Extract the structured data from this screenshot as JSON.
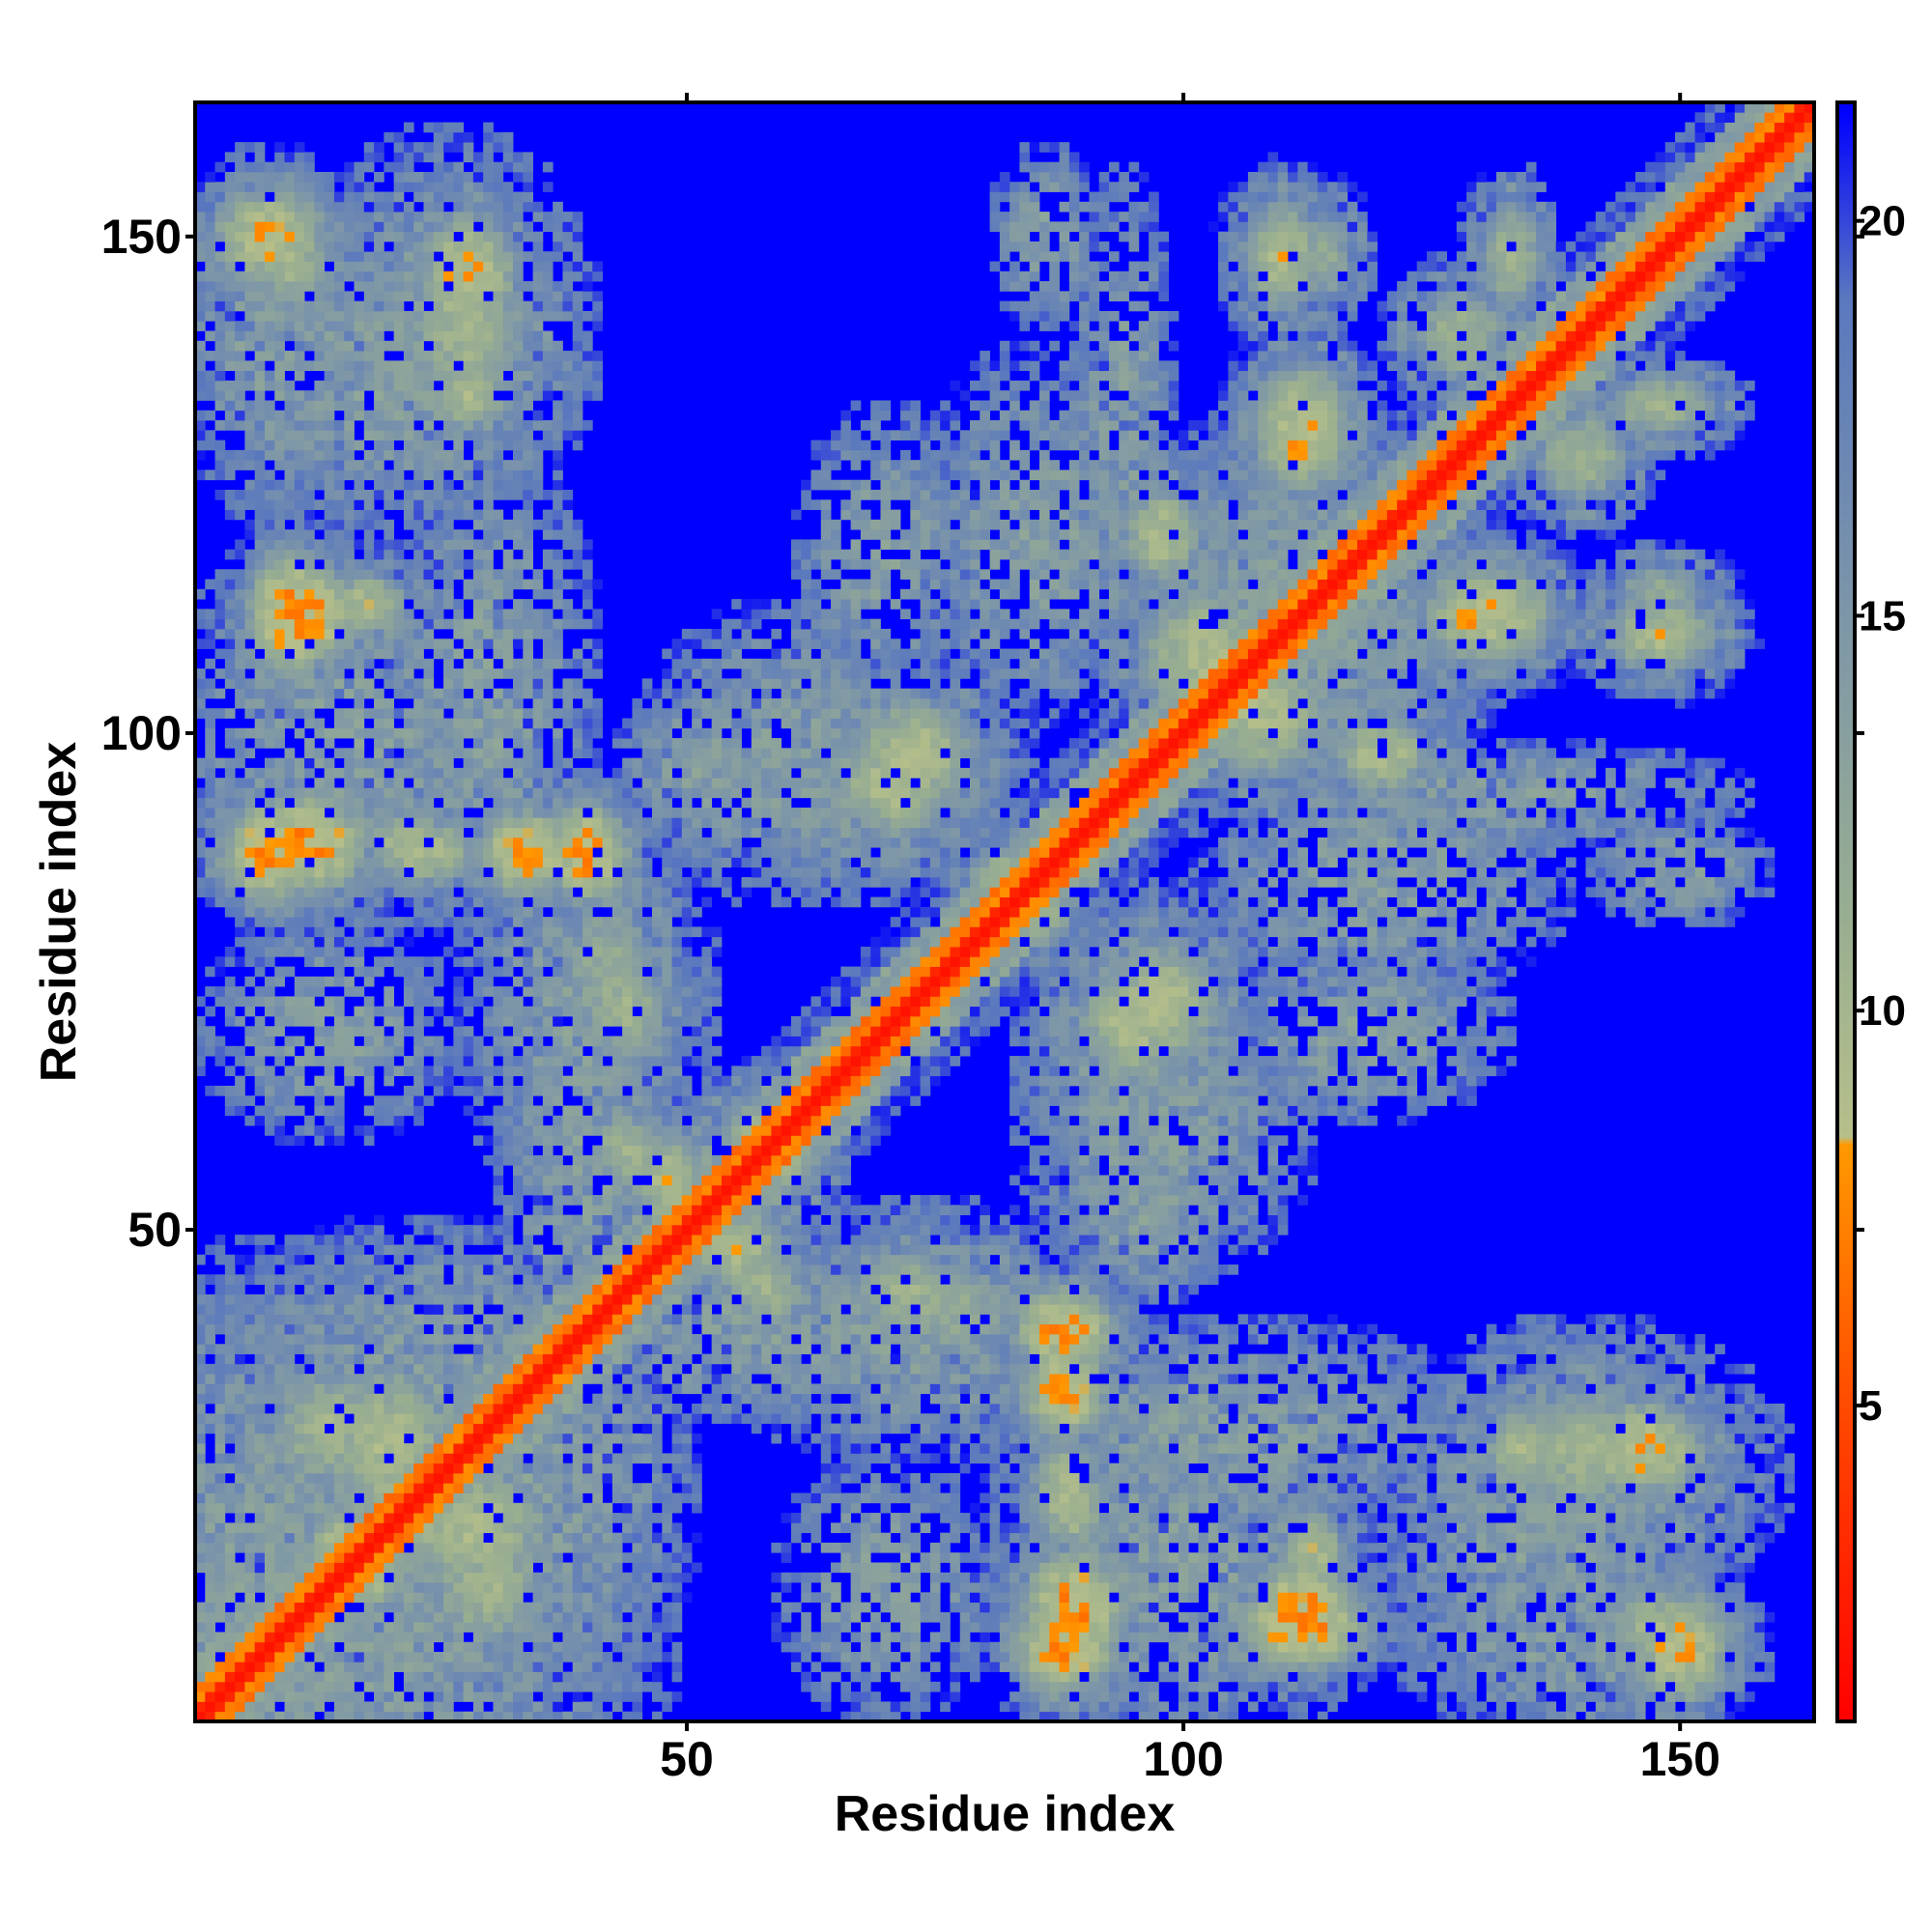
{
  "chart_data": {
    "type": "heatmap",
    "title": "",
    "xlabel": "Residue index",
    "ylabel": "Residue index",
    "x_range": [
      1,
      163
    ],
    "y_range": [
      1,
      163
    ],
    "x_ticks": [
      50,
      100,
      150
    ],
    "y_ticks": [
      50,
      100,
      150
    ],
    "x_tick_labels": [
      "50",
      "100",
      "150"
    ],
    "y_tick_labels": [
      "50",
      "100",
      "150"
    ],
    "colorbar": {
      "range": [
        1,
        21.5
      ],
      "ticks": [
        5,
        10,
        15,
        20
      ],
      "tick_labels": [
        "5",
        "10",
        "15",
        "20"
      ],
      "colors": [
        {
          "at": 1,
          "color": "#ff0000"
        },
        {
          "at": 5,
          "color": "#ff4a00"
        },
        {
          "at": 8.3,
          "color": "#ff9900"
        },
        {
          "at": 8.4,
          "color": "#b6bf8a"
        },
        {
          "at": 11,
          "color": "#9aaf90"
        },
        {
          "at": 15,
          "color": "#7d96a8"
        },
        {
          "at": 19,
          "color": "#5a78be"
        },
        {
          "at": 21.4,
          "color": "#0000ff"
        }
      ]
    },
    "background_color": "#0000ff",
    "value_meaning": "pairwise residue distance (cutoff ~21.5); diagonal band of low values, off-diagonal contact clusters",
    "diagonal_band": {
      "core_value": 2,
      "inner_value": 6,
      "halo_value": 12,
      "outer_value": 18
    },
    "contact_clusters": [
      {
        "x": 8,
        "y": 150,
        "w": 7,
        "h": 6,
        "peak": 7
      },
      {
        "x": 28,
        "y": 146,
        "w": 6,
        "h": 8,
        "peak": 7
      },
      {
        "x": 28,
        "y": 134,
        "w": 5,
        "h": 4,
        "peak": 8
      },
      {
        "x": 12,
        "y": 112,
        "w": 6,
        "h": 6,
        "peak": 6
      },
      {
        "x": 12,
        "y": 89,
        "w": 7,
        "h": 6,
        "peak": 6
      },
      {
        "x": 34,
        "y": 88,
        "w": 6,
        "h": 5,
        "peak": 6
      },
      {
        "x": 22,
        "y": 89,
        "w": 5,
        "h": 4,
        "peak": 8
      },
      {
        "x": 42,
        "y": 76,
        "w": 6,
        "h": 10,
        "peak": 10
      },
      {
        "x": 48,
        "y": 55,
        "w": 5,
        "h": 6,
        "peak": 8
      },
      {
        "x": 60,
        "y": 58,
        "w": 5,
        "h": 6,
        "peak": 9
      },
      {
        "x": 58,
        "y": 44,
        "w": 5,
        "h": 5,
        "peak": 9
      },
      {
        "x": 72,
        "y": 44,
        "w": 6,
        "h": 5,
        "peak": 9
      },
      {
        "x": 73,
        "y": 98,
        "w": 8,
        "h": 7,
        "peak": 8
      },
      {
        "x": 82,
        "y": 85,
        "w": 5,
        "h": 5,
        "peak": 9
      },
      {
        "x": 95,
        "y": 71,
        "w": 7,
        "h": 8,
        "peak": 8
      },
      {
        "x": 102,
        "y": 108,
        "w": 8,
        "h": 8,
        "peak": 8
      },
      {
        "x": 112,
        "y": 130,
        "w": 6,
        "h": 7,
        "peak": 7
      },
      {
        "x": 110,
        "y": 148,
        "w": 5,
        "h": 7,
        "peak": 8
      },
      {
        "x": 120,
        "y": 98,
        "w": 6,
        "h": 5,
        "peak": 8
      },
      {
        "x": 132,
        "y": 112,
        "w": 7,
        "h": 6,
        "peak": 8
      },
      {
        "x": 148,
        "y": 114,
        "w": 6,
        "h": 4,
        "peak": 10
      },
      {
        "x": 140,
        "y": 128,
        "w": 6,
        "h": 6,
        "peak": 9
      },
      {
        "x": 133,
        "y": 148,
        "w": 4,
        "h": 7,
        "peak": 9
      },
      {
        "x": 88,
        "y": 40,
        "w": 6,
        "h": 5,
        "peak": 6
      },
      {
        "x": 88,
        "y": 8,
        "w": 6,
        "h": 6,
        "peak": 6
      },
      {
        "x": 88,
        "y": 24,
        "w": 4,
        "h": 6,
        "peak": 8
      },
      {
        "x": 112,
        "y": 10,
        "w": 8,
        "h": 5,
        "peak": 6
      },
      {
        "x": 113,
        "y": 18,
        "w": 4,
        "h": 5,
        "peak": 8
      },
      {
        "x": 140,
        "y": 28,
        "w": 8,
        "h": 8,
        "peak": 9
      },
      {
        "x": 148,
        "y": 10,
        "w": 7,
        "h": 5,
        "peak": 9
      },
      {
        "x": 20,
        "y": 28,
        "w": 8,
        "h": 10,
        "peak": 8
      },
      {
        "x": 30,
        "y": 14,
        "w": 8,
        "h": 8,
        "peak": 9
      },
      {
        "x": 18,
        "y": 16,
        "w": 5,
        "h": 5,
        "peak": 7
      }
    ],
    "diffuse_regions": [
      {
        "x": 18,
        "y": 136,
        "w": 16,
        "h": 18
      },
      {
        "x": 16,
        "y": 100,
        "w": 20,
        "h": 22
      },
      {
        "x": 40,
        "y": 72,
        "w": 14,
        "h": 22
      },
      {
        "x": 86,
        "y": 120,
        "w": 14,
        "h": 20
      },
      {
        "x": 86,
        "y": 150,
        "w": 6,
        "h": 10
      },
      {
        "x": 112,
        "y": 112,
        "w": 22,
        "h": 22
      },
      {
        "x": 132,
        "y": 94,
        "w": 26,
        "h": 6
      },
      {
        "x": 96,
        "y": 68,
        "w": 14,
        "h": 18
      },
      {
        "x": 118,
        "y": 70,
        "w": 16,
        "h": 10
      },
      {
        "x": 96,
        "y": 52,
        "w": 10,
        "h": 10
      },
      {
        "x": 60,
        "y": 98,
        "w": 16,
        "h": 16
      },
      {
        "x": 56,
        "y": 40,
        "w": 24,
        "h": 10
      },
      {
        "x": 104,
        "y": 30,
        "w": 28,
        "h": 12
      },
      {
        "x": 140,
        "y": 26,
        "w": 22,
        "h": 16
      },
      {
        "x": 140,
        "y": 8,
        "w": 20,
        "h": 10
      },
      {
        "x": 70,
        "y": 14,
        "w": 12,
        "h": 14
      },
      {
        "x": 36,
        "y": 24,
        "w": 16,
        "h": 24
      },
      {
        "x": 10,
        "y": 16,
        "w": 30,
        "h": 34
      }
    ]
  }
}
